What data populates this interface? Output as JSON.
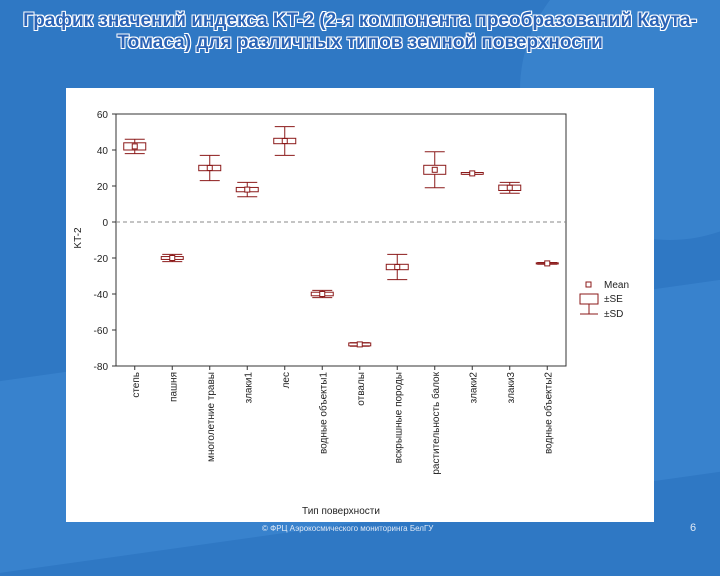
{
  "slide": {
    "title": "График значений индекса KT-2 (2-я компонента преобразований Каута-Томаса) для различных типов земной поверхности",
    "footer": "© ФРЦ Аэрокосмического мониторинга БелГУ",
    "page_number": "6"
  },
  "chart_data": {
    "type": "scatter",
    "subtype": "mean-se-sd-box",
    "title": "",
    "xlabel": "Тип поверхности",
    "ylabel": "KT-2",
    "ylim": [
      -80,
      60
    ],
    "yticks": [
      60,
      40,
      20,
      0,
      -20,
      -40,
      -60,
      -80
    ],
    "categories": [
      "степь",
      "пашня",
      "многолетние травы",
      "злаки1",
      "лес",
      "водные объекты1",
      "отвалы",
      "вскрышные породы",
      "растительность балок",
      "злаки2",
      "злаки3",
      "водные объекты2"
    ],
    "mean": [
      42,
      -20,
      30,
      18,
      45,
      -40,
      -68,
      -25,
      29,
      27,
      19,
      -23
    ],
    "se": [
      2,
      0.8,
      1.5,
      1.2,
      1.5,
      1.0,
      0.8,
      1.5,
      2.5,
      0.5,
      1.5,
      0.3
    ],
    "sd": [
      4,
      2,
      7,
      4,
      8,
      2,
      1,
      7,
      10,
      0.5,
      3,
      0.5
    ],
    "reference_line": 0,
    "grid": false,
    "legend": {
      "placement": "right",
      "entries": [
        "Mean",
        "±SE",
        "±SD"
      ]
    },
    "colors": {
      "series": "#8b1a1a",
      "axis": "#333333",
      "reference": "#888888"
    }
  }
}
